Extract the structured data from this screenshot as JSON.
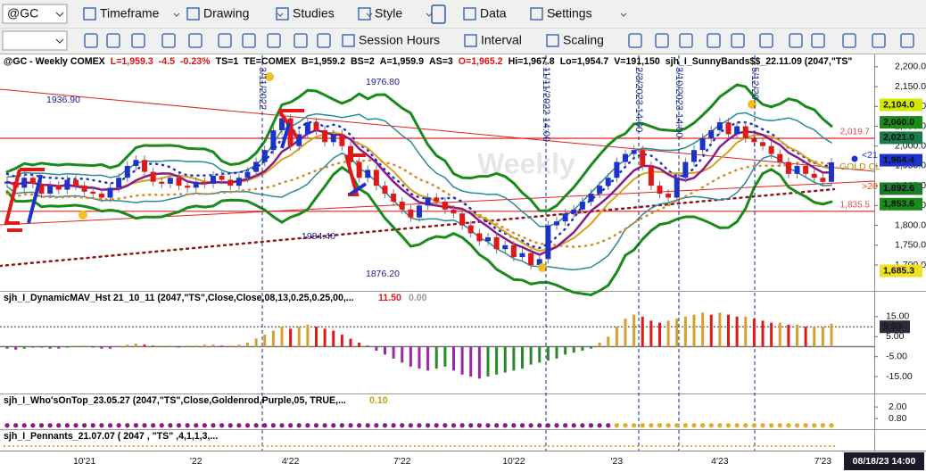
{
  "toolbar": {
    "symbol": "@GC",
    "row1": [
      "Timeframe",
      "Drawing",
      "Studies",
      "Style",
      "Data",
      "Settings"
    ],
    "row2": [
      "Session Hours",
      "Interval",
      "Scaling"
    ]
  },
  "chart_data": [
    {
      "type": "candlestick",
      "title_parts": [
        {
          "text": "@GC - Weekly  COMEX",
          "color": "#000"
        },
        {
          "text": "L=1,959.3",
          "color": "#e01010"
        },
        {
          "text": "-4.5",
          "color": "#e01010"
        },
        {
          "text": "-0.23%",
          "color": "#e01010"
        },
        {
          "text": "TS=1",
          "color": "#000"
        },
        {
          "text": "TE=COMEX",
          "color": "#000"
        },
        {
          "text": "B=1,959.2",
          "color": "#000"
        },
        {
          "text": "BS=2",
          "color": "#000"
        },
        {
          "text": "A=1,959.9",
          "color": "#000"
        },
        {
          "text": "AS=3",
          "color": "#000"
        },
        {
          "text": "O=1,965.2",
          "color": "#e01010"
        },
        {
          "text": "Hi=1,967.8",
          "color": "#000"
        },
        {
          "text": "Lo=1,954.7",
          "color": "#000"
        },
        {
          "text": "V=191,150",
          "color": "#000"
        },
        {
          "text": "sjh_I_SunnyBands$$_22.11.09 (2047,\"TS\"",
          "color": "#000"
        }
      ],
      "categories": [
        null,
        null,
        null,
        null,
        null,
        null,
        null,
        null,
        null,
        "10'21",
        null,
        null,
        null,
        null,
        null,
        null,
        null,
        null,
        null,
        null,
        null,
        null,
        "'22",
        null,
        null,
        null,
        null,
        null,
        null,
        null,
        null,
        null,
        null,
        "4'22",
        null,
        null,
        null,
        null,
        null,
        null,
        null,
        null,
        null,
        null,
        null,
        null,
        "7'22",
        null,
        null,
        null,
        null,
        null,
        null,
        null,
        null,
        null,
        null,
        null,
        null,
        "10'22",
        null,
        null,
        null,
        null,
        null,
        null,
        null,
        null,
        null,
        null,
        null,
        "'23",
        null,
        null,
        null,
        null,
        null,
        null,
        null,
        null,
        null,
        null,
        null,
        "4'23",
        null,
        null,
        null,
        null,
        null,
        null,
        null,
        null,
        null,
        null,
        null,
        "7'23",
        null
      ],
      "values": [
        1910,
        1895,
        1920,
        1905,
        1880,
        1900,
        1890,
        1915,
        1900,
        1885,
        1880,
        1870,
        1895,
        1920,
        1950,
        1965,
        1935,
        1910,
        1905,
        1920,
        1900,
        1895,
        1910,
        1905,
        1925,
        1915,
        1900,
        1920,
        1935,
        1960,
        1990,
        2040,
        2070,
        2000,
        2030,
        2060,
        2040,
        2010,
        2030,
        2000,
        1960,
        1920,
        1940,
        1900,
        1880,
        1860,
        1840,
        1820,
        1850,
        1870,
        1860,
        1840,
        1830,
        1800,
        1780,
        1760,
        1770,
        1740,
        1750,
        1720,
        1730,
        1700,
        1715,
        1800,
        1810,
        1830,
        1840,
        1860,
        1880,
        1900,
        1920,
        1960,
        1980,
        1990,
        1950,
        1900,
        1880,
        1870,
        1920,
        1960,
        1990,
        2020,
        2040,
        2060,
        2030,
        2050,
        2020,
        2010,
        2000,
        1980,
        1960,
        1930,
        1950,
        1930,
        1920,
        1910,
        1959
      ],
      "colors": {
        "up": "#1c32c8",
        "down": "#e01818",
        "band": "#1a8a1a",
        "inner": "#2a8a99",
        "fast": "#8a1a8a",
        "slow": "#d9a020"
      },
      "ylim": [
        1637,
        2229
      ],
      "yticks": [
        {
          "value": 2200,
          "label": "2,200.0"
        },
        {
          "value": 2150,
          "label": "2,150.0"
        },
        {
          "value": 2100,
          "label": "2,100.0"
        },
        {
          "value": 2050,
          "label": "2,050.0"
        },
        {
          "value": 2000,
          "label": "2,000.0"
        },
        {
          "value": 1950,
          "label": "1,950.0"
        },
        {
          "value": 1900,
          "label": "1,900.0"
        },
        {
          "value": 1850,
          "label": "1,850.0"
        },
        {
          "value": 1800,
          "label": "1,800.0"
        },
        {
          "value": 1750,
          "label": "1,750.0"
        },
        {
          "value": 1700,
          "label": "1,700.0"
        }
      ],
      "price_lines": [
        {
          "value": 2019.7,
          "label": "2,019.7"
        },
        {
          "value": 1835.5,
          "label": "1,835.5"
        }
      ],
      "price_tags": [
        {
          "value": 2104.0,
          "label": "2,104.0",
          "color": "#d4e800"
        },
        {
          "value": 2060.0,
          "label": "2,060.0",
          "color": "#1a8a1a"
        },
        {
          "value": 2021.0,
          "label": "2,021.0",
          "color": "#1a7a4a"
        },
        {
          "value": 1964.4,
          "label": "1,964.4",
          "color": "#1c32c8"
        },
        {
          "value": 1892.6,
          "label": "1,892.6",
          "color": "#1a7a2a"
        },
        {
          "value": 1853.6,
          "label": "1,853.6",
          "color": "#1a8a1a"
        },
        {
          "value": 1685.3,
          "label": "1,685.3",
          "color": "#f0e020"
        }
      ],
      "annotations": [
        "1936.90",
        "1976.80",
        "1984.40",
        "1876.20"
      ],
      "events": [
        "3/11/2022",
        "11/11/2022 14:00",
        "2/3/2023 14:00",
        "3/10/2023 14:00",
        "5/12/20"
      ],
      "side_texts": [
        "<21",
        "GOLD CL",
        ">20"
      ],
      "watermark": "Weekly",
      "time_stamp": "08/18/23 14:00"
    },
    {
      "type": "bar",
      "title": "sjh_I_DynamicMAV_Hst 21_10_11 (2047,\"TS\",Close,Close,08,13,0.25,0.25,00,...",
      "readouts": [
        {
          "value": 11.5,
          "label": "11.50"
        },
        {
          "value": 0,
          "label": "0.00"
        }
      ],
      "values": [
        -1,
        -1.5,
        -1,
        -0.5,
        -0.5,
        -1,
        -1,
        -0.5,
        0.5,
        0.5,
        -0.5,
        -1,
        -1,
        0.5,
        1,
        1.5,
        1,
        0.5,
        0.5,
        0.5,
        0,
        0.5,
        0.5,
        1,
        1,
        0.5,
        0.5,
        1,
        2,
        4,
        6,
        8,
        10,
        9,
        10,
        11,
        10,
        9,
        8,
        6,
        4,
        2,
        0.5,
        -2,
        -4,
        -6,
        -8,
        -10,
        -11,
        -12,
        -11,
        -10,
        -12,
        -14,
        -15,
        -16,
        -15,
        -14,
        -13,
        -12,
        -11,
        -9,
        -8,
        -7,
        -6,
        -4,
        -3,
        -2,
        -1,
        2,
        5,
        10,
        14,
        16,
        15,
        13,
        12,
        13,
        14,
        15,
        16,
        17,
        16,
        17,
        16,
        15,
        15,
        14,
        13,
        12,
        12,
        11,
        11,
        10,
        10,
        10,
        11.5
      ],
      "colors": {
        "pos_up": "#d4a030",
        "pos_down": "#e01818",
        "neg_down": "#9a28a8",
        "neg_up": "#2a8a2a"
      },
      "ylim": [
        -23,
        27
      ],
      "yticks": [
        {
          "value": 15,
          "label": "15.00"
        },
        {
          "value": 5,
          "label": "5.00"
        },
        {
          "value": -5,
          "label": "-5.00"
        },
        {
          "value": -15,
          "label": "-15.00"
        }
      ],
      "current": {
        "value": 9.93,
        "label": "9.93"
      }
    },
    {
      "type": "indicator",
      "title": "sjh_I_Who'sOnTop_23.05.27 (2047,\"TS\",Close,Goldenrod,Purple,05,  TRUE,...",
      "readouts": [
        {
          "value": 0.1,
          "label": "0.10"
        }
      ],
      "ylim": [
        -0.2,
        3.3
      ],
      "yticks": [
        {
          "value": 2,
          "label": "2.00"
        },
        {
          "value": 0.8,
          "label": "0.80"
        }
      ]
    },
    {
      "type": "indicator",
      "title": "sjh_I_Pennants_21.07.07 ( 2047 , \"TS\" ,4,1,1,3,..."
    }
  ]
}
